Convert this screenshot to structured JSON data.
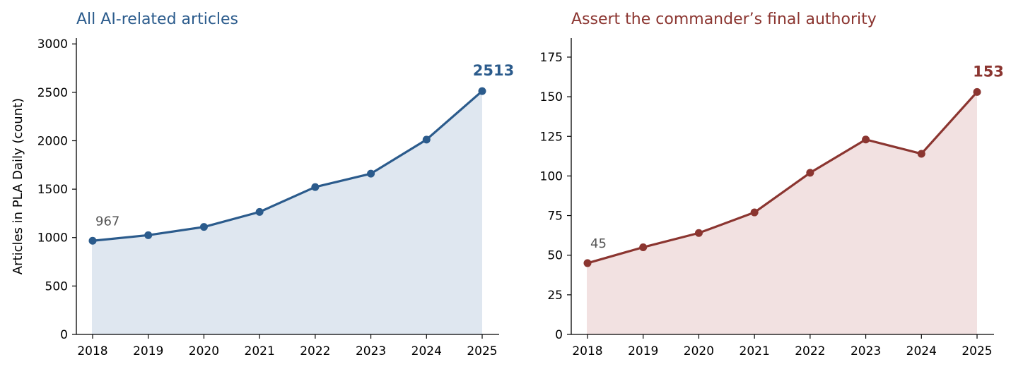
{
  "chart_data": [
    {
      "type": "area",
      "title": "All AI-related articles",
      "xlabel": "",
      "ylabel": "Articles in PLA Daily (count)",
      "categories": [
        "2018",
        "2019",
        "2020",
        "2021",
        "2022",
        "2023",
        "2024",
        "2025"
      ],
      "series": [
        {
          "values": [
            967,
            1025,
            1110,
            1265,
            1522,
            1660,
            2012,
            2513
          ]
        }
      ],
      "ylim": [
        0,
        3060
      ],
      "yticks": [
        0,
        500,
        1000,
        1500,
        2000,
        2500,
        3000
      ],
      "annotations": {
        "start": "967",
        "end": "2513"
      },
      "color": "#2b5b8c",
      "fill": "#dfe7f0",
      "grid": false
    },
    {
      "type": "area",
      "title": "Assert the commander’s final authority",
      "xlabel": "",
      "ylabel": "",
      "categories": [
        "2018",
        "2019",
        "2020",
        "2021",
        "2022",
        "2023",
        "2024",
        "2025"
      ],
      "series": [
        {
          "values": [
            45,
            55,
            64,
            77,
            102,
            123,
            114,
            153
          ]
        }
      ],
      "ylim": [
        0,
        187
      ],
      "yticks": [
        0,
        25,
        50,
        75,
        100,
        125,
        150,
        175
      ],
      "annotations": {
        "start": "45",
        "end": "153"
      },
      "color": "#8b3530",
      "fill": "#f2e1e1",
      "grid": false
    }
  ]
}
